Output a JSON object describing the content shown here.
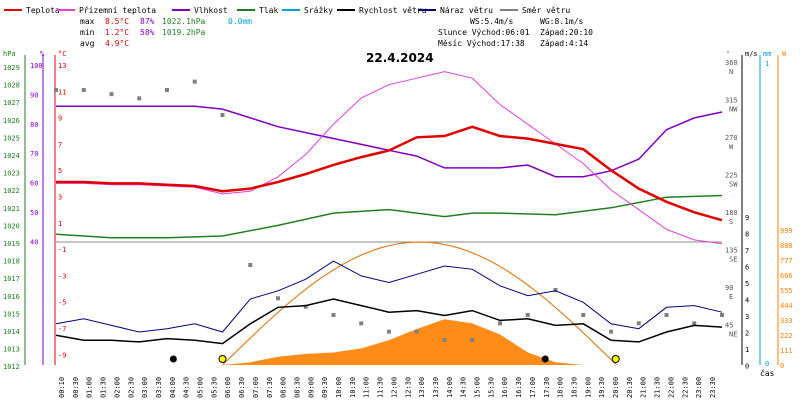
{
  "legend": [
    {
      "label": "Teplota",
      "color": "#e00000"
    },
    {
      "label": "Přízemní teplota",
      "color": "#e040e0"
    },
    {
      "label": "Vlhkost",
      "color": "#8000c0"
    },
    {
      "label": "Tlak",
      "color": "#208020"
    },
    {
      "label": "Srážky",
      "color": "#00a0d0"
    },
    {
      "label": "Rychlost větru",
      "color": "#000000"
    },
    {
      "label": "Náraz větru",
      "color": "#000080"
    },
    {
      "label": "Směr větru",
      "color": "#808080"
    }
  ],
  "stats": {
    "max_label": "max",
    "max_temp": "8.5°C",
    "max_hum": "87%",
    "max_press": "1022.1hPa",
    "max_rain": "0.0mm",
    "min_label": "min",
    "min_temp": "1.2°C",
    "min_hum": "58%",
    "min_press": "1019.2hPa",
    "avg_label": "avg",
    "avg_temp": "4.9°C"
  },
  "wind_info": {
    "ws": "WS:5.4m/s",
    "wg": "WG:8.1m/s"
  },
  "sun_info": {
    "sunrise": "Slunce Východ:06:01",
    "sunset": "Západ:20:10"
  },
  "moon_info": {
    "moonrise": "Měsíc  Východ:17:38",
    "moonset": "Západ:4:14"
  },
  "date": "22.4.2024",
  "x_label": "čas",
  "axes": {
    "hpa_label": "hPa",
    "hpa_ticks": [
      "1029",
      "1028",
      "1027",
      "1026",
      "1025",
      "1024",
      "1023",
      "1022",
      "1021",
      "1020",
      "1019",
      "1018",
      "1017",
      "1016",
      "1015",
      "1014",
      "1013",
      "1012"
    ],
    "pct_label": "%",
    "pct_ticks": [
      "100",
      "90",
      "80",
      "70",
      "60",
      "50",
      "40"
    ],
    "temp_label": "°C",
    "temp_ticks": [
      "13",
      "11",
      "9",
      "7",
      "5",
      "3",
      "1",
      "-1",
      "-3",
      "-5",
      "-7",
      "-9"
    ],
    "temp_ticks_lower": [
      "0",
      "-1",
      "-4",
      "-7",
      "-10"
    ],
    "dir_label": "°",
    "dir_ticks": [
      "360",
      "315",
      "270",
      "225",
      "180",
      "135",
      "90",
      "45"
    ],
    "dir_names": [
      "N",
      "NW",
      "W",
      "SW",
      "S",
      "SE",
      "E",
      "NE"
    ],
    "ms_label": "m/s",
    "ms_ticks": [
      "9",
      "8",
      "7",
      "6",
      "5",
      "4",
      "3",
      "2",
      "1",
      "0"
    ],
    "mm_label": "mm",
    "mm_ticks": [
      "1",
      "0"
    ],
    "w_label": "W",
    "w_ticks": [
      "999",
      "888",
      "777",
      "666",
      "555",
      "444",
      "333",
      "222",
      "111",
      "0"
    ]
  },
  "time_ticks": [
    "00:10",
    "00:30",
    "01:00",
    "01:30",
    "02:00",
    "02:30",
    "03:00",
    "03:30",
    "04:00",
    "04:30",
    "05:00",
    "05:30",
    "06:00",
    "06:30",
    "07:00",
    "07:30",
    "08:00",
    "08:30",
    "09:00",
    "09:30",
    "10:00",
    "10:30",
    "11:00",
    "11:30",
    "12:00",
    "12:30",
    "13:00",
    "13:30",
    "14:00",
    "14:30",
    "15:00",
    "15:30",
    "16:00",
    "16:30",
    "17:00",
    "17:30",
    "18:00",
    "18:30",
    "19:00",
    "19:30",
    "20:00",
    "20:30",
    "21:00",
    "21:30",
    "22:00",
    "22:30",
    "23:00",
    "23:30"
  ],
  "colors": {
    "temp": "#e00000",
    "ground": "#e040e0",
    "hum": "#8000c0",
    "press": "#208020",
    "rain": "#00a0d0",
    "wind": "#000000",
    "gust": "#000080",
    "dir": "#808080",
    "solar": "#ff8000",
    "sunpath": "#e08020",
    "grid": "#cccccc"
  },
  "chart_data": {
    "type": "line",
    "x_unit": "hour",
    "temperature_c": [
      [
        0,
        4.1
      ],
      [
        1,
        4.1
      ],
      [
        2,
        4.0
      ],
      [
        3,
        4.0
      ],
      [
        4,
        3.9
      ],
      [
        5,
        3.8
      ],
      [
        6,
        3.4
      ],
      [
        7,
        3.6
      ],
      [
        8,
        4.1
      ],
      [
        9,
        4.7
      ],
      [
        10,
        5.4
      ],
      [
        11,
        6.0
      ],
      [
        12,
        6.5
      ],
      [
        13,
        7.5
      ],
      [
        14,
        7.6
      ],
      [
        15,
        8.3
      ],
      [
        16,
        7.6
      ],
      [
        17,
        7.4
      ],
      [
        18,
        7.0
      ],
      [
        19,
        6.6
      ],
      [
        20,
        5.0
      ],
      [
        21,
        3.6
      ],
      [
        22,
        2.6
      ],
      [
        23,
        1.8
      ],
      [
        24,
        1.2
      ]
    ],
    "ground_temp_c": [
      [
        0,
        4.0
      ],
      [
        1,
        4.0
      ],
      [
        2,
        3.9
      ],
      [
        3,
        3.9
      ],
      [
        4,
        3.8
      ],
      [
        5,
        3.7
      ],
      [
        6,
        3.2
      ],
      [
        7,
        3.4
      ],
      [
        8,
        4.5
      ],
      [
        9,
        6.2
      ],
      [
        10,
        8.5
      ],
      [
        11,
        10.5
      ],
      [
        12,
        11.5
      ],
      [
        13,
        12.0
      ],
      [
        14,
        12.5
      ],
      [
        15,
        12.0
      ],
      [
        16,
        10.0
      ],
      [
        17,
        8.5
      ],
      [
        18,
        7.0
      ],
      [
        19,
        5.5
      ],
      [
        20,
        3.5
      ],
      [
        21,
        2.0
      ],
      [
        22,
        0.5
      ],
      [
        23,
        -0.3
      ],
      [
        24,
        -0.6
      ]
    ],
    "humidity_pct": [
      [
        0,
        86
      ],
      [
        1,
        86
      ],
      [
        2,
        86
      ],
      [
        3,
        86
      ],
      [
        4,
        86
      ],
      [
        5,
        86
      ],
      [
        6,
        85
      ],
      [
        7,
        82
      ],
      [
        8,
        79
      ],
      [
        9,
        77
      ],
      [
        10,
        75
      ],
      [
        11,
        73
      ],
      [
        12,
        71
      ],
      [
        13,
        69
      ],
      [
        14,
        65
      ],
      [
        15,
        65
      ],
      [
        16,
        65
      ],
      [
        17,
        66
      ],
      [
        18,
        62
      ],
      [
        19,
        62
      ],
      [
        20,
        64
      ],
      [
        21,
        68
      ],
      [
        22,
        78
      ],
      [
        23,
        82
      ],
      [
        24,
        84
      ]
    ],
    "pressure_hpa": [
      [
        0,
        1019.5
      ],
      [
        2,
        1019.3
      ],
      [
        4,
        1019.3
      ],
      [
        6,
        1019.4
      ],
      [
        8,
        1020.0
      ],
      [
        10,
        1020.7
      ],
      [
        12,
        1020.9
      ],
      [
        14,
        1020.5
      ],
      [
        15,
        1020.7
      ],
      [
        16,
        1020.7
      ],
      [
        18,
        1020.6
      ],
      [
        20,
        1021.0
      ],
      [
        22,
        1021.6
      ],
      [
        24,
        1021.7
      ]
    ],
    "rain_mm": 0.0,
    "wind_speed_ms": [
      [
        0,
        1.8
      ],
      [
        1,
        1.5
      ],
      [
        2,
        1.5
      ],
      [
        3,
        1.4
      ],
      [
        4,
        1.6
      ],
      [
        5,
        1.5
      ],
      [
        6,
        1.3
      ],
      [
        7,
        2.5
      ],
      [
        8,
        3.5
      ],
      [
        9,
        3.6
      ],
      [
        10,
        4.0
      ],
      [
        11,
        3.6
      ],
      [
        12,
        3.2
      ],
      [
        13,
        3.3
      ],
      [
        14,
        3.0
      ],
      [
        15,
        3.3
      ],
      [
        16,
        2.7
      ],
      [
        17,
        2.8
      ],
      [
        18,
        2.4
      ],
      [
        19,
        2.5
      ],
      [
        20,
        1.5
      ],
      [
        21,
        1.4
      ],
      [
        22,
        2.0
      ],
      [
        23,
        2.4
      ],
      [
        24,
        2.3
      ]
    ],
    "wind_gust_ms": [
      [
        0,
        2.5
      ],
      [
        1,
        2.8
      ],
      [
        2,
        2.4
      ],
      [
        3,
        2.0
      ],
      [
        4,
        2.2
      ],
      [
        5,
        2.5
      ],
      [
        6,
        2.0
      ],
      [
        7,
        4.0
      ],
      [
        8,
        4.5
      ],
      [
        9,
        5.2
      ],
      [
        10,
        6.3
      ],
      [
        11,
        5.4
      ],
      [
        12,
        5.0
      ],
      [
        13,
        5.5
      ],
      [
        14,
        6.0
      ],
      [
        15,
        5.8
      ],
      [
        16,
        4.8
      ],
      [
        17,
        4.2
      ],
      [
        18,
        4.5
      ],
      [
        19,
        3.8
      ],
      [
        20,
        2.5
      ],
      [
        21,
        2.2
      ],
      [
        22,
        3.5
      ],
      [
        23,
        3.6
      ],
      [
        24,
        3.2
      ]
    ],
    "wind_dir_deg": [
      [
        0,
        330
      ],
      [
        1,
        330
      ],
      [
        2,
        325
      ],
      [
        3,
        320
      ],
      [
        4,
        330
      ],
      [
        5,
        340
      ],
      [
        6,
        300
      ],
      [
        7,
        120
      ],
      [
        8,
        80
      ],
      [
        9,
        70
      ],
      [
        10,
        60
      ],
      [
        11,
        50
      ],
      [
        12,
        40
      ],
      [
        13,
        40
      ],
      [
        14,
        30
      ],
      [
        15,
        30
      ],
      [
        16,
        50
      ],
      [
        17,
        60
      ],
      [
        18,
        90
      ],
      [
        19,
        60
      ],
      [
        20,
        40
      ],
      [
        21,
        50
      ],
      [
        22,
        60
      ],
      [
        23,
        50
      ],
      [
        24,
        60
      ]
    ],
    "solar_w": [
      [
        6,
        0
      ],
      [
        7,
        20
      ],
      [
        8,
        60
      ],
      [
        9,
        80
      ],
      [
        10,
        90
      ],
      [
        11,
        120
      ],
      [
        12,
        180
      ],
      [
        13,
        260
      ],
      [
        14,
        330
      ],
      [
        15,
        300
      ],
      [
        16,
        220
      ],
      [
        17,
        90
      ],
      [
        18,
        20
      ],
      [
        19,
        0
      ]
    ],
    "sun_elevation_w": [
      [
        6,
        0
      ],
      [
        14,
        888
      ],
      [
        20.2,
        0
      ]
    ],
    "sun_rise_time": 6.0,
    "sun_set_time": 20.17,
    "moon_set_time": 4.23,
    "moon_rise_time": 17.63
  }
}
